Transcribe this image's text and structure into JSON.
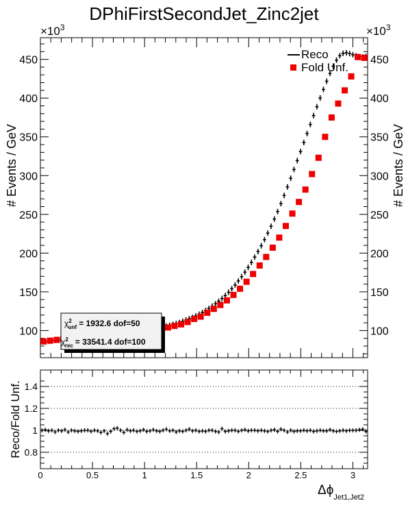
{
  "title": "DPhiFirstSecondJet_Zinc2jet",
  "colors": {
    "reco": "#000000",
    "fold": "#ee0000",
    "grid": "#000000"
  },
  "top_panel": {
    "ylabel": "# Events / GeV",
    "ylabel_right": "# Events / GeV",
    "exponent_left": "×10",
    "exponent_right": "×10",
    "exponent_power": "3",
    "legend": {
      "reco_label": "Reco",
      "fold_label": "Fold Unf."
    },
    "stats": {
      "line1_symbol": "χ",
      "line1_sup": "2",
      "line1_sub": "unf",
      "line1_text": "=   1932.6  dof=50",
      "line2_symbol": "χ",
      "line2_sup": "2",
      "line2_sub": "rec",
      "line2_text": "=  33541.4  dof=100"
    }
  },
  "bottom_panel": {
    "ylabel": "Reco/Fold Unf.",
    "xlabel_main": "Δϕ",
    "xlabel_sub": "Jet1,Jet2"
  },
  "chart_data": [
    {
      "type": "scatter",
      "title": "DPhiFirstSecondJet_Zinc2jet",
      "ylabel": "# Events / GeV",
      "ylim": [
        65,
        478
      ],
      "yticks": [
        100,
        150,
        200,
        250,
        300,
        350,
        400,
        450
      ],
      "ytick_labels": [
        "100",
        "150",
        "200",
        "250",
        "300",
        "350",
        "400",
        "450"
      ],
      "y_unit_multiplier": "×10^3",
      "xlim": [
        0,
        3.1416
      ],
      "legend_position": "top-right",
      "grid": false,
      "series": [
        {
          "name": "Reco",
          "style": "cross",
          "bin_width": 0.0314,
          "x": [
            0.0157,
            0.0471,
            0.0785,
            0.11,
            0.1414,
            0.1728,
            0.2042,
            0.2356,
            0.267,
            0.2985,
            0.3299,
            0.3613,
            0.3927,
            0.4241,
            0.4555,
            0.4869,
            0.5184,
            0.5498,
            0.5812,
            0.6126,
            0.644,
            0.6754,
            0.7069,
            0.7383,
            0.7697,
            0.8011,
            0.8325,
            0.8639,
            0.8954,
            0.9268,
            0.9582,
            0.9896,
            1.021,
            1.0524,
            1.0838,
            1.1153,
            1.1467,
            1.1781,
            1.2095,
            1.2409,
            1.2723,
            1.3038,
            1.3352,
            1.3666,
            1.398,
            1.4294,
            1.4608,
            1.4923,
            1.5237,
            1.5551,
            1.5865,
            1.6179,
            1.6493,
            1.6808,
            1.7122,
            1.7436,
            1.775,
            1.8064,
            1.8378,
            1.8692,
            1.9007,
            1.9321,
            1.9635,
            1.9949,
            2.0263,
            2.0577,
            2.0892,
            2.1206,
            2.152,
            2.1834,
            2.2148,
            2.2462,
            2.2777,
            2.3091,
            2.3405,
            2.3719,
            2.4033,
            2.4347,
            2.4662,
            2.4976,
            2.529,
            2.5604,
            2.5918,
            2.6232,
            2.6546,
            2.6861,
            2.7175,
            2.7489,
            2.7803,
            2.8117,
            2.8431,
            2.8746,
            2.906,
            2.9374,
            2.9688,
            3.0002,
            3.0316,
            3.0631,
            3.0945,
            3.1259
          ],
          "y": [
            85.5,
            86.0,
            86.3,
            86.8,
            87.3,
            87.9,
            88.6,
            89.3,
            90.0,
            90.7,
            91.2,
            91.6,
            92.0,
            92.2,
            92.4,
            92.5,
            92.6,
            92.6,
            92.8,
            93.1,
            93.5,
            94.1,
            94.7,
            95.4,
            96.3,
            97.2,
            98.1,
            99.0,
            99.8,
            100.5,
            101.1,
            101.6,
            102.1,
            102.6,
            103.1,
            103.7,
            104.3,
            105.0,
            105.8,
            106.8,
            107.8,
            109.0,
            110.4,
            112.0,
            113.7,
            115.3,
            117.0,
            119.0,
            121.1,
            123.4,
            125.9,
            128.6,
            131.5,
            134.6,
            137.9,
            141.4,
            145.2,
            149.4,
            154.0,
            158.9,
            164.1,
            169.6,
            175.4,
            181.5,
            188.0,
            194.8,
            202.0,
            209.5,
            217.4,
            225.8,
            234.6,
            243.9,
            253.6,
            263.8,
            274.4,
            285.4,
            296.6,
            307.9,
            319.4,
            331.0,
            342.7,
            354.3,
            366.0,
            377.5,
            388.9,
            400.2,
            411.2,
            421.8,
            431.9,
            441.2,
            449.0,
            454.7,
            457.8,
            458.5,
            457.5,
            456.0,
            454.6,
            453.6,
            453.2,
            453.8
          ]
        },
        {
          "name": "Fold Unf.",
          "style": "square",
          "x": [
            0.0314,
            0.0942,
            0.1571,
            0.2199,
            0.2827,
            0.3456,
            0.4084,
            0.4712,
            0.5341,
            0.5969,
            0.6597,
            0.7226,
            0.7854,
            0.8482,
            0.9111,
            0.9739,
            1.0367,
            1.0996,
            1.1624,
            1.2252,
            1.2881,
            1.3509,
            1.4137,
            1.4765,
            1.5394,
            1.6022,
            1.665,
            1.7279,
            1.7907,
            1.8535,
            1.9164,
            1.9792,
            2.042,
            2.1049,
            2.1677,
            2.2305,
            2.2934,
            2.3562,
            2.419,
            2.4819,
            2.5447,
            2.6075,
            2.6704,
            2.7332,
            2.796,
            2.8588,
            2.9217,
            2.9845,
            3.0473,
            3.1102
          ],
          "y": [
            86,
            87,
            88,
            89,
            90,
            91,
            92,
            92,
            92,
            92,
            93,
            93,
            94,
            96,
            97,
            99,
            101,
            102,
            103,
            104,
            106,
            108,
            111,
            115,
            118,
            123,
            128,
            133,
            139,
            146,
            154,
            163,
            173,
            184,
            195,
            207,
            220,
            235,
            251,
            266,
            282,
            302,
            323,
            350,
            375,
            393,
            410,
            428,
            453,
            452
          ]
        }
      ]
    },
    {
      "type": "scatter",
      "ylabel": "Reco/Fold Unf.",
      "xlabel": "Δϕ Jet1,Jet2",
      "xlim": [
        0,
        3.1416
      ],
      "ylim": [
        0.65,
        1.55
      ],
      "yticks": [
        0.8,
        1,
        1.2,
        1.4
      ],
      "ytick_labels": [
        "0.8",
        "1",
        "1.2",
        "1.4"
      ],
      "xticks": [
        0,
        0.5,
        1,
        1.5,
        2,
        2.5,
        3
      ],
      "xtick_labels": [
        "0",
        "0.5",
        "1",
        "1.5",
        "2",
        "2.5",
        "3"
      ],
      "reference_lines": [
        0.8,
        1,
        1.2,
        1.4
      ],
      "series": [
        {
          "name": "Reco/Fold Unf.",
          "style": "cross",
          "bin_width": 0.0314,
          "x": [
            0.0157,
            0.0471,
            0.0785,
            0.11,
            0.1414,
            0.1728,
            0.2042,
            0.2356,
            0.267,
            0.2985,
            0.3299,
            0.3613,
            0.3927,
            0.4241,
            0.4555,
            0.4869,
            0.5184,
            0.5498,
            0.5812,
            0.6126,
            0.644,
            0.6754,
            0.7069,
            0.7383,
            0.7697,
            0.8011,
            0.8325,
            0.8639,
            0.8954,
            0.9268,
            0.9582,
            0.9896,
            1.021,
            1.0524,
            1.0838,
            1.1153,
            1.1467,
            1.1781,
            1.2095,
            1.2409,
            1.2723,
            1.3038,
            1.3352,
            1.3666,
            1.398,
            1.4294,
            1.4608,
            1.4923,
            1.5237,
            1.5551,
            1.5865,
            1.6179,
            1.6493,
            1.6808,
            1.7122,
            1.7436,
            1.775,
            1.8064,
            1.8378,
            1.8692,
            1.9007,
            1.9321,
            1.9635,
            1.9949,
            2.0263,
            2.0577,
            2.0892,
            2.1206,
            2.152,
            2.1834,
            2.2148,
            2.2462,
            2.2777,
            2.3091,
            2.3405,
            2.3719,
            2.4033,
            2.4347,
            2.4662,
            2.4976,
            2.529,
            2.5604,
            2.5918,
            2.6232,
            2.6546,
            2.6861,
            2.7175,
            2.7489,
            2.7803,
            2.8117,
            2.8431,
            2.8746,
            2.906,
            2.9374,
            2.9688,
            3.0002,
            3.0316,
            3.0631,
            3.0945,
            3.1259
          ],
          "y": [
            1.0,
            1.005,
            0.995,
            1.0,
            0.985,
            1.0,
            0.995,
            1.005,
            0.985,
            1.0,
            0.995,
            0.99,
            0.995,
            1.0,
            1.0,
            0.99,
            1.0,
            0.995,
            0.98,
            0.995,
            0.97,
            0.99,
            1.015,
            1.02,
            1.0,
            0.98,
            1.005,
            0.995,
            1.0,
            0.99,
            0.995,
            1.005,
            0.99,
            0.995,
            1.005,
            0.995,
            0.99,
            1.0,
            1.01,
            0.995,
            1.0,
            0.985,
            0.995,
            0.99,
            1.0,
            1.01,
            0.995,
            1.0,
            0.99,
            0.995,
            0.99,
            1.0,
            1.0,
            0.99,
            0.985,
            1.015,
            0.99,
            0.995,
            1.0,
            1.0,
            0.99,
            1.0,
            1.005,
            0.995,
            1.0,
            1.0,
            0.995,
            1.0,
            0.995,
            0.99,
            1.0,
            1.005,
            0.99,
            1.01,
            1.0,
            0.985,
            1.0,
            0.99,
            0.995,
            0.995,
            1.0,
            0.995,
            1.0,
            0.99,
            0.995,
            1.0,
            0.995,
            0.995,
            1.005,
            0.995,
            0.99,
            0.995,
            1.0,
            0.995,
            1.0,
            1.0,
            1.0,
            1.005,
            1.01,
            0.99
          ]
        }
      ]
    }
  ]
}
